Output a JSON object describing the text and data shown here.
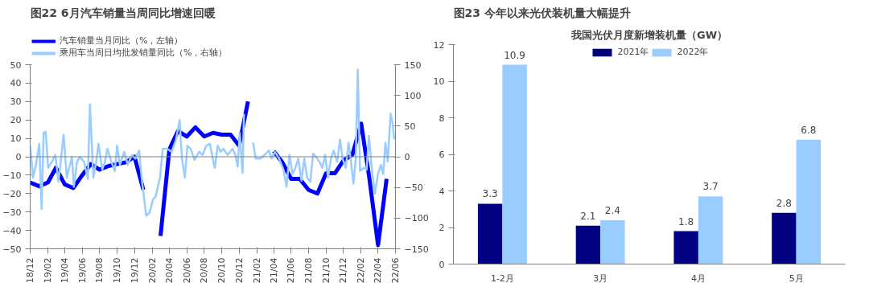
{
  "chart_data": [
    {
      "type": "line",
      "title": "图22 6月汽车销量当周同比增速回暖",
      "legend": "top",
      "grid": false,
      "line_style": "solid",
      "marker": "none",
      "xlim": [
        "2018-12",
        "2022-06"
      ],
      "xticks": [
        {
          "value": "2018-12",
          "label": "18/12"
        },
        {
          "value": "2019-02",
          "label": "19/02"
        },
        {
          "value": "2019-04",
          "label": "19/04"
        },
        {
          "value": "2019-06",
          "label": "19/06"
        },
        {
          "value": "2019-08",
          "label": "19/08"
        },
        {
          "value": "2019-10",
          "label": "19/10"
        },
        {
          "value": "2019-12",
          "label": "19/12"
        },
        {
          "value": "2020-02",
          "label": "20/02"
        },
        {
          "value": "2020-04",
          "label": "20/04"
        },
        {
          "value": "2020-06",
          "label": "20/06"
        },
        {
          "value": "2020-08",
          "label": "20/08"
        },
        {
          "value": "2020-10",
          "label": "20/10"
        },
        {
          "value": "2020-12",
          "label": "20/12"
        },
        {
          "value": "2021-02",
          "label": "21/02"
        },
        {
          "value": "2021-04",
          "label": "21/04"
        },
        {
          "value": "2021-06",
          "label": "21/06"
        },
        {
          "value": "2021-08",
          "label": "21/08"
        },
        {
          "value": "2021-10",
          "label": "21/10"
        },
        {
          "value": "2021-12",
          "label": "21/12"
        },
        {
          "value": "2022-02",
          "label": "22/02"
        },
        {
          "value": "2022-04",
          "label": "22/04"
        },
        {
          "value": "2022-06",
          "label": "22/06"
        }
      ],
      "ylim": [
        -50,
        50
      ],
      "yticks": [
        -50,
        -40,
        -30,
        -20,
        -10,
        0,
        10,
        20,
        30,
        40,
        50
      ],
      "y2lim": [
        -150,
        150
      ],
      "y2ticks": [
        -150,
        -100,
        -50,
        0,
        50,
        100,
        150
      ],
      "ref_lines": [
        {
          "axis": "y",
          "value": 0,
          "color": "#808080"
        }
      ],
      "series": [
        {
          "name": "汽车销量当月同比（%，左轴）",
          "color": "#0000ff",
          "x": [
            "2018-12",
            "2019-01",
            "2019-02",
            "2019-03",
            "2019-04",
            "2019-05",
            "2019-06",
            "2019-07",
            "2019-08",
            "2019-09",
            "2019-10",
            "2019-11",
            "2019-12",
            "2020-01",
            "2020-02",
            "2020-03",
            "2020-04",
            "2020-05",
            "2020-06",
            "2020-07",
            "2020-08",
            "2020-09",
            "2020-10",
            "2020-11",
            "2020-12",
            "2021-01",
            "2021-02",
            "2021-03",
            "2021-04",
            "2021-05",
            "2021-06",
            "2021-07",
            "2021-08",
            "2021-09",
            "2021-10",
            "2021-11",
            "2021-12",
            "2022-01",
            "2022-02",
            "2022-03",
            "2022-04",
            "2022-05"
          ],
          "values": [
            -14,
            -16,
            -14,
            -6,
            -15,
            -17,
            -10,
            -4,
            -7,
            -5,
            -4,
            -3,
            0,
            -18,
            null,
            -43,
            4,
            14,
            11,
            16,
            11,
            13,
            12,
            12,
            6,
            30,
            null,
            null,
            3,
            -3,
            -12,
            -12,
            -18,
            -20,
            -9,
            -9,
            -2,
            1,
            18,
            -11,
            -48,
            -12
          ]
        },
        {
          "name": "乘用车当周日均批发销量同比（%，右轴）",
          "color": "#99ccff",
          "axis": "y2",
          "x": [
            "2018-12-01",
            "2018-12-11",
            "2018-12-21",
            "2019-01-02",
            "2019-01-10",
            "2019-01-17",
            "2019-01-24",
            "2019-02-02",
            "2019-02-15",
            "2019-02-27",
            "2019-03-10",
            "2019-03-28",
            "2019-04-08",
            "2019-04-26",
            "2019-05-03",
            "2019-05-14",
            "2019-05-24",
            "2019-06-07",
            "2019-06-21",
            "2019-06-28",
            "2019-07-10",
            "2019-07-20",
            "2019-07-28",
            "2019-08-10",
            "2019-08-20",
            "2019-08-28",
            "2019-09-11",
            "2019-09-23",
            "2019-10-01",
            "2019-10-11",
            "2019-10-26",
            "2019-11-07",
            "2019-11-22",
            "2019-12-04",
            "2019-12-17",
            "2019-12-27",
            "2020-01-11",
            "2020-01-23",
            "2020-02-03",
            "2020-02-13",
            "2020-02-28",
            "2020-03-09",
            "2020-03-24",
            "2020-04-09",
            "2020-04-24",
            "2020-05-07",
            "2020-05-15",
            "2020-05-25",
            "2020-06-03",
            "2020-06-15",
            "2020-06-28",
            "2020-07-14",
            "2020-07-26",
            "2020-08-08",
            "2020-08-21",
            "2020-09-02",
            "2020-09-07",
            "2020-09-17",
            "2020-09-27",
            "2020-10-07",
            "2020-10-22",
            "2020-11-08",
            "2020-11-18",
            "2020-11-26",
            "2020-12-03",
            "2020-12-13",
            "2020-12-18",
            "2020-12-29",
            "2021-01-09",
            "2021-01-19",
            "2021-01-28",
            "2021-02-14",
            "2021-02-28",
            "2021-03-15",
            "2021-03-25",
            "2021-04-05",
            "2021-04-20",
            "2021-05-05",
            "2021-05-16",
            "2021-05-26",
            "2021-06-06",
            "2021-06-16",
            "2021-06-26",
            "2021-07-07",
            "2021-07-17",
            "2021-07-27",
            "2021-08-07",
            "2021-08-17",
            "2021-08-27",
            "2021-09-08",
            "2021-09-18",
            "2021-09-28",
            "2021-10-08",
            "2021-10-18",
            "2021-10-28",
            "2021-11-09",
            "2021-11-19",
            "2021-11-28",
            "2021-12-09",
            "2021-12-19",
            "2021-12-26",
            "2022-01-05",
            "2022-01-13",
            "2022-01-20",
            "2022-01-28",
            "2022-02-10",
            "2022-02-20",
            "2022-02-28",
            "2022-03-11",
            "2022-03-21",
            "2022-04-01",
            "2022-04-11",
            "2022-04-19",
            "2022-04-27",
            "2022-05-05",
            "2022-05-15",
            "2022-05-22",
            "2022-05-28"
          ],
          "values": [
            18,
            -34,
            -13,
            21,
            -85,
            39,
            41,
            -18,
            -8,
            3,
            -41,
            36,
            -34,
            0,
            -49,
            -8,
            0,
            -8,
            -36,
            85,
            -34,
            -8,
            21,
            -21,
            -8,
            13,
            -8,
            -23,
            18,
            -13,
            8,
            -13,
            3,
            -3,
            10,
            -39,
            -96,
            -91,
            -70,
            -65,
            -34,
            13,
            13,
            8,
            28,
            60,
            -3,
            -34,
            18,
            13,
            -5,
            8,
            3,
            18,
            21,
            -8,
            -18,
            18,
            8,
            13,
            3,
            13,
            3,
            -16,
            39,
            -26,
            70,
            null,
            null,
            23,
            -3,
            -3,
            3,
            10,
            -3,
            8,
            -3,
            -21,
            -49,
            3,
            -28,
            -18,
            -3,
            -39,
            -3,
            -34,
            -41,
            5,
            0,
            -8,
            -18,
            3,
            -34,
            -3,
            10,
            -8,
            28,
            -3,
            -18,
            23,
            -3,
            -44,
            -3,
            142,
            -23,
            -18,
            -21,
            34,
            -23,
            -60,
            -28,
            -13,
            -28,
            23,
            -8,
            70,
            54,
            28
          ]
        }
      ]
    },
    {
      "type": "bar",
      "title": "图23 今年以来光伏装机量大幅提升",
      "subtitle": "我国光伏月度新增装机量（GW）",
      "legend": "top",
      "grid": false,
      "data_labels": true,
      "categories": [
        "1-2月",
        "3月",
        "4月",
        "5月"
      ],
      "ylim": [
        0,
        12
      ],
      "yticks": [
        0,
        2,
        4,
        6,
        8,
        10,
        12
      ],
      "series": [
        {
          "name": "2021年",
          "color": "#000080",
          "values": [
            3.3,
            2.1,
            1.8,
            2.8
          ]
        },
        {
          "name": "2022年",
          "color": "#99ccff",
          "values": [
            10.9,
            2.4,
            3.7,
            6.8
          ]
        }
      ]
    }
  ]
}
